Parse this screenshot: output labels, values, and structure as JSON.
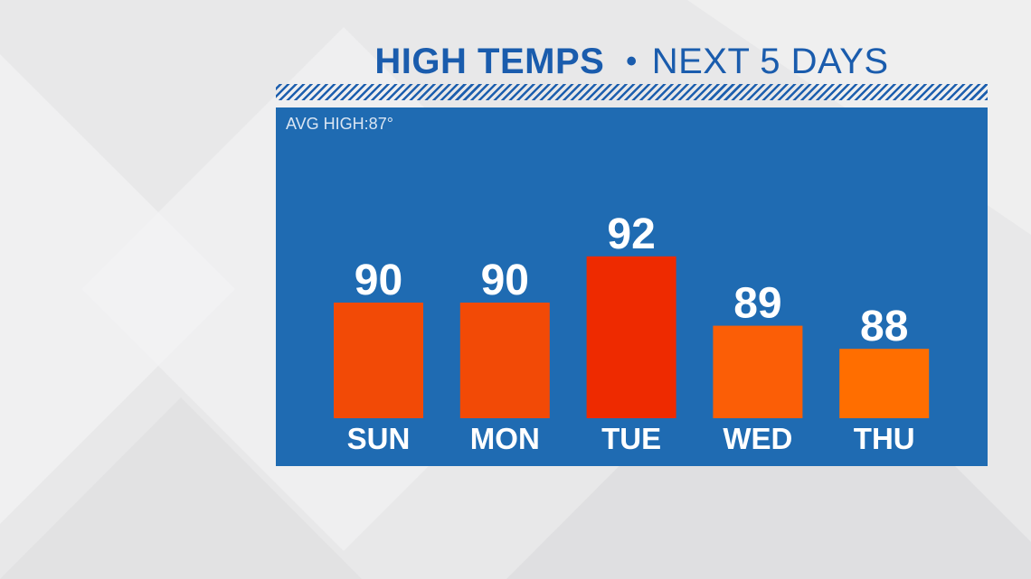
{
  "header": {
    "title_bold": "HIGH TEMPS",
    "separator": "•",
    "title_sub": "NEXT 5 DAYS"
  },
  "panel": {
    "avg_label": "AVG HIGH:87°"
  },
  "colors": {
    "title": "#1a5cad",
    "panel": "#1f6bb2"
  },
  "chart_data": {
    "type": "bar",
    "title": "HIGH TEMPS • NEXT 5 DAYS",
    "categories": [
      "SUN",
      "MON",
      "TUE",
      "WED",
      "THU"
    ],
    "values": [
      90,
      90,
      92,
      89,
      88
    ],
    "bar_colors": [
      "#f24a06",
      "#f24a06",
      "#ee2a00",
      "#fb5e06",
      "#ff6e00"
    ],
    "data_labels": [
      "90",
      "90",
      "92",
      "89",
      "88"
    ],
    "annotation": "AVG HIGH:87°",
    "grid": false,
    "legend": "none"
  }
}
